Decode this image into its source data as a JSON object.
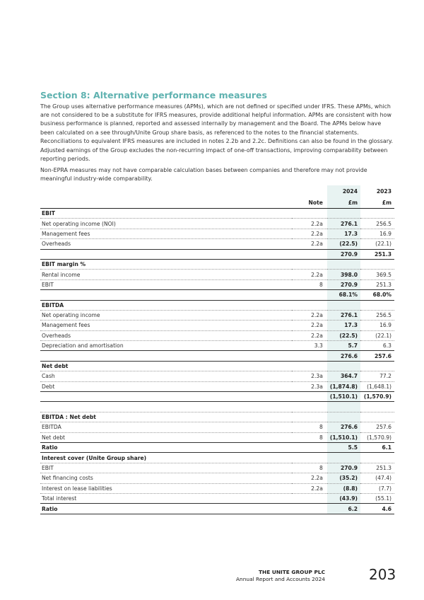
{
  "section_title": "Section 8: Alternative performance measures",
  "paragraphs": [
    "The Group uses alternative performance measures (APMs), which are not defined or specified under IFRS. These APMs, which are not considered to be a substitute for IFRS measures, provide additional helpful information. APMs are consistent with how business performance is planned, reported and assessed internally by management and the Board. The APMs below have been calculated on a see through/Unite Group share basis, as referenced to the notes to the financial statements. Reconciliations to equivalent IFRS measures are included in notes 2.2b and 2.2c. Definitions can also be found in the glossary.",
    "Adjusted earnings of the Group excludes the non-recurring impact of one-off transactions, improving comparability between reporting periods.",
    "Non-EPRA measures may not have comparable calculation bases between companies and therefore may not provide meaningful industry-wide comparability."
  ],
  "table": {
    "header": {
      "year_2024": "2024",
      "year_2023": "2023",
      "note": "Note",
      "unit_2024": "£m",
      "unit_2023": "£m"
    },
    "rows": [
      {
        "type": "sec",
        "label": "EBIT",
        "note": "",
        "v2024": "",
        "v2023": ""
      },
      {
        "type": "item",
        "label": "Net operating income (NOI)",
        "note": "2.2a",
        "v2024": "276.1",
        "v2023": "256.5"
      },
      {
        "type": "item",
        "label": "Management fees",
        "note": "2.2a",
        "v2024": "17.3",
        "v2023": "16.9"
      },
      {
        "type": "item",
        "label": "Overheads",
        "note": "2.2a",
        "v2024": "(22.5)",
        "v2023": "(22.1)"
      },
      {
        "type": "total",
        "label": "",
        "note": "",
        "v2024": "270.9",
        "v2023": "251.3"
      },
      {
        "type": "sec",
        "label": "EBIT margin %",
        "note": "",
        "v2024": "",
        "v2023": ""
      },
      {
        "type": "item",
        "label": "Rental income",
        "note": "2.2a",
        "v2024": "398.0",
        "v2023": "369.5"
      },
      {
        "type": "item",
        "label": "EBIT",
        "note": "8",
        "v2024": "270.9",
        "v2023": "251.3"
      },
      {
        "type": "total",
        "label": "",
        "note": "",
        "v2024": "68.1%",
        "v2023": "68.0%"
      },
      {
        "type": "sec",
        "label": "EBITDA",
        "note": "",
        "v2024": "",
        "v2023": ""
      },
      {
        "type": "item",
        "label": "Net operating income",
        "note": "2.2a",
        "v2024": "276.1",
        "v2023": "256.5"
      },
      {
        "type": "item",
        "label": "Management fees",
        "note": "2.2a",
        "v2024": "17.3",
        "v2023": "16.9"
      },
      {
        "type": "item",
        "label": "Overheads",
        "note": "2.2a",
        "v2024": "(22.5)",
        "v2023": "(22.1)"
      },
      {
        "type": "item",
        "label": "Depreciation and amortisation",
        "note": "3.3",
        "v2024": "5.7",
        "v2023": "6.3"
      },
      {
        "type": "total",
        "label": "",
        "note": "",
        "v2024": "276.6",
        "v2023": "257.6"
      },
      {
        "type": "sec",
        "label": "Net debt",
        "note": "",
        "v2024": "",
        "v2023": ""
      },
      {
        "type": "item",
        "label": "Cash",
        "note": "2.3a",
        "v2024": "364.7",
        "v2023": "77.2"
      },
      {
        "type": "item",
        "label": "Debt",
        "note": "2.3a",
        "v2024": "(1,874.8)",
        "v2023": "(1,648.1)"
      },
      {
        "type": "total",
        "label": "",
        "note": "",
        "v2024": "(1,510.1)",
        "v2023": "(1,570.9)"
      },
      {
        "type": "blank",
        "label": "",
        "note": "",
        "v2024": "",
        "v2023": ""
      },
      {
        "type": "sec",
        "label": "EBITDA : Net debt",
        "note": "",
        "v2024": "",
        "v2023": ""
      },
      {
        "type": "item",
        "label": "EBITDA",
        "note": "8",
        "v2024": "276.6",
        "v2023": "257.6"
      },
      {
        "type": "item",
        "label": "Net debt",
        "note": "8",
        "v2024": "(1,510.1)",
        "v2023": "(1,570.9)"
      },
      {
        "type": "ratio",
        "label": "Ratio",
        "note": "",
        "v2024": "5.5",
        "v2023": "6.1"
      },
      {
        "type": "sec",
        "label": "Interest cover (Unite Group share)",
        "note": "",
        "v2024": "",
        "v2023": ""
      },
      {
        "type": "item",
        "label": "EBIT",
        "note": "8",
        "v2024": "270.9",
        "v2023": "251.3"
      },
      {
        "type": "item",
        "label": "Net financing costs",
        "note": "2.2a",
        "v2024": "(35.2)",
        "v2023": "(47.4)"
      },
      {
        "type": "item",
        "label": "Interest on lease liabilities",
        "note": "2.2a",
        "v2024": "(8.8)",
        "v2023": "(7.7)"
      },
      {
        "type": "item",
        "label": "Total interest",
        "note": "",
        "v2024": "(43.9)",
        "v2023": "(55.1)"
      },
      {
        "type": "ratio",
        "label": "Ratio",
        "note": "",
        "v2024": "6.2",
        "v2023": "4.6"
      }
    ]
  },
  "footer": {
    "company": "THE UNITE GROUP PLC",
    "report": "Annual Report and Accounts 2024",
    "page_number": "203"
  },
  "colors": {
    "accent": "#5fb2b0",
    "highlight_column": "#e8f3f2"
  }
}
